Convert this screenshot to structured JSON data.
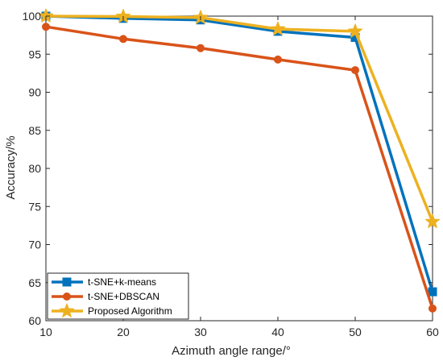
{
  "chart_data": {
    "type": "line",
    "xlabel": "Azimuth angle range/°",
    "ylabel": "Accuracy/%",
    "xlim": [
      10,
      60
    ],
    "ylim": [
      60,
      100
    ],
    "x_ticks": [
      10,
      20,
      30,
      40,
      50,
      60
    ],
    "y_ticks": [
      60,
      65,
      70,
      75,
      80,
      85,
      90,
      95,
      100
    ],
    "grid": false,
    "legend_position": "bottom-left",
    "x": [
      10,
      20,
      30,
      40,
      50,
      60
    ],
    "series": [
      {
        "name": "t-SNE+k-means",
        "values": [
          100,
          99.7,
          99.5,
          98,
          97.2,
          63.8
        ],
        "color": "#0072BD",
        "marker": "square"
      },
      {
        "name": "t-SNE+DBSCAN",
        "values": [
          98.6,
          97,
          95.8,
          94.3,
          92.9,
          61.6
        ],
        "color": "#D95319",
        "marker": "circle"
      },
      {
        "name": "Proposed Algorithm",
        "values": [
          100,
          99.95,
          99.8,
          98.3,
          98,
          73
        ],
        "color": "#EDB120",
        "marker": "star"
      }
    ]
  }
}
